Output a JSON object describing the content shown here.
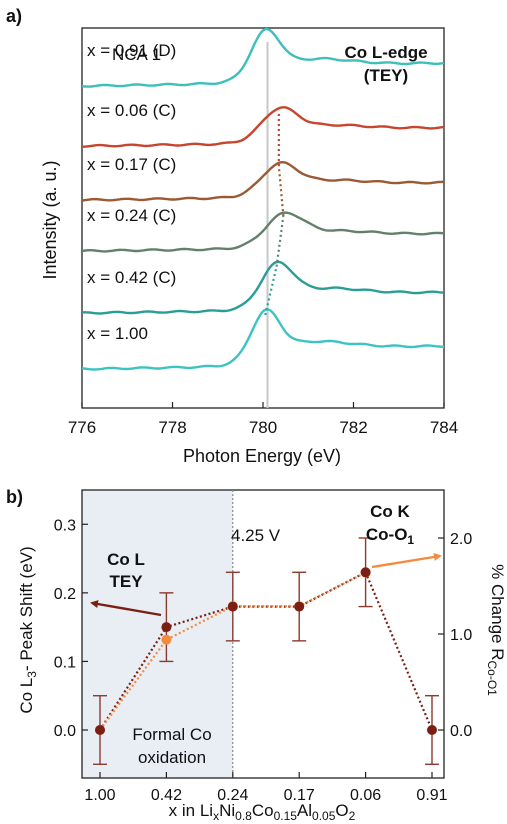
{
  "chart_data": [
    {
      "panel_label": "a)",
      "type": "line",
      "xlabel": "Photon Energy (eV)",
      "ylabel": "Intensity (a. u.)",
      "xlim": [
        776,
        784
      ],
      "x_ticks": [
        "776",
        "778",
        "780",
        "782",
        "784"
      ],
      "annotations": {
        "sample": "NCA 1",
        "edge_line1": "Co L-edge",
        "edge_line2": "(TEY)"
      },
      "reference_line_x": 780.1,
      "series": [
        {
          "name": "x = 0.91 (D)",
          "color": "#3ebfb8",
          "peak_x": 780.05,
          "peak_height": 0.95,
          "width": 0.45,
          "step": 0.38,
          "bg": 0.12
        },
        {
          "name": "x = 0.06 (C)",
          "color": "#c6452f",
          "peak_x": 780.35,
          "peak_height": 0.62,
          "width": 0.55,
          "step": 0.3,
          "bg": 0.1
        },
        {
          "name": "x = 0.17 (C)",
          "color": "#9b5a33",
          "peak_x": 780.35,
          "peak_height": 0.6,
          "width": 0.55,
          "step": 0.28,
          "bg": 0.1
        },
        {
          "name": "x = 0.24 (C)",
          "color": "#62806a",
          "peak_x": 780.45,
          "peak_height": 0.62,
          "width": 0.58,
          "step": 0.28,
          "bg": 0.1
        },
        {
          "name": "x = 0.42 (C)",
          "color": "#2a9d96",
          "peak_x": 780.3,
          "peak_height": 0.85,
          "width": 0.5,
          "step": 0.35,
          "bg": 0.1
        },
        {
          "name": "x = 1.00",
          "color": "#3ec3c3",
          "peak_x": 780.05,
          "peak_height": 1.0,
          "width": 0.45,
          "step": 0.38,
          "bg": 0.12
        }
      ]
    },
    {
      "panel_label": "b)",
      "type": "line",
      "categories": [
        "1.00",
        "0.42",
        "0.24",
        "0.17",
        "0.06",
        "0.91"
      ],
      "xlabel_parts": [
        {
          "t": "x in Li",
          "s": ""
        },
        {
          "t": "x",
          "s": "sub"
        },
        {
          "t": "Ni",
          "s": ""
        },
        {
          "t": "0.8",
          "s": "sub"
        },
        {
          "t": "Co",
          "s": ""
        },
        {
          "t": "0.15",
          "s": "sub"
        },
        {
          "t": "Al",
          "s": ""
        },
        {
          "t": "0.05",
          "s": "sub"
        },
        {
          "t": "O",
          "s": ""
        },
        {
          "t": "2",
          "s": "sub"
        }
      ],
      "ylabel_left_parts": [
        {
          "t": "Co L",
          "s": ""
        },
        {
          "t": "3",
          "s": "sub"
        },
        {
          "t": "- Peak Shift (eV)",
          "s": ""
        }
      ],
      "ylabel_right_parts": [
        {
          "t": "% Change R",
          "s": ""
        },
        {
          "t": "Co-O1",
          "s": "sub"
        }
      ],
      "ylim_left": [
        -0.07,
        0.35
      ],
      "yticks_left": [
        0.0,
        0.1,
        0.2,
        0.3
      ],
      "ytick_labels_left": [
        "0.0",
        "0.1",
        "0.2",
        "0.3"
      ],
      "ylim_right": [
        -0.5,
        2.5
      ],
      "yticks_right": [
        0.0,
        1.0,
        2.0
      ],
      "ytick_labels_right": [
        "0.0",
        "1.0",
        "2.0"
      ],
      "shaded_region_label_line1": "Formal Co",
      "shaded_region_label_line2": "oxidation",
      "voltage_label": "4.25 V",
      "series": [
        {
          "name_line1": "Co L",
          "name_line2": "TEY",
          "axis": "left",
          "color": "#7a1f14",
          "values": [
            0.0,
            0.15,
            0.18,
            0.18,
            0.23,
            0.0
          ]
        },
        {
          "name_line1": "Co K",
          "name_line2": "Co-O",
          "name_sub": "1",
          "axis": "right",
          "color": "#f58a3c",
          "values": [
            0.0,
            0.94,
            1.29,
            1.29,
            1.64,
            null
          ]
        }
      ],
      "error": 0.05
    }
  ]
}
